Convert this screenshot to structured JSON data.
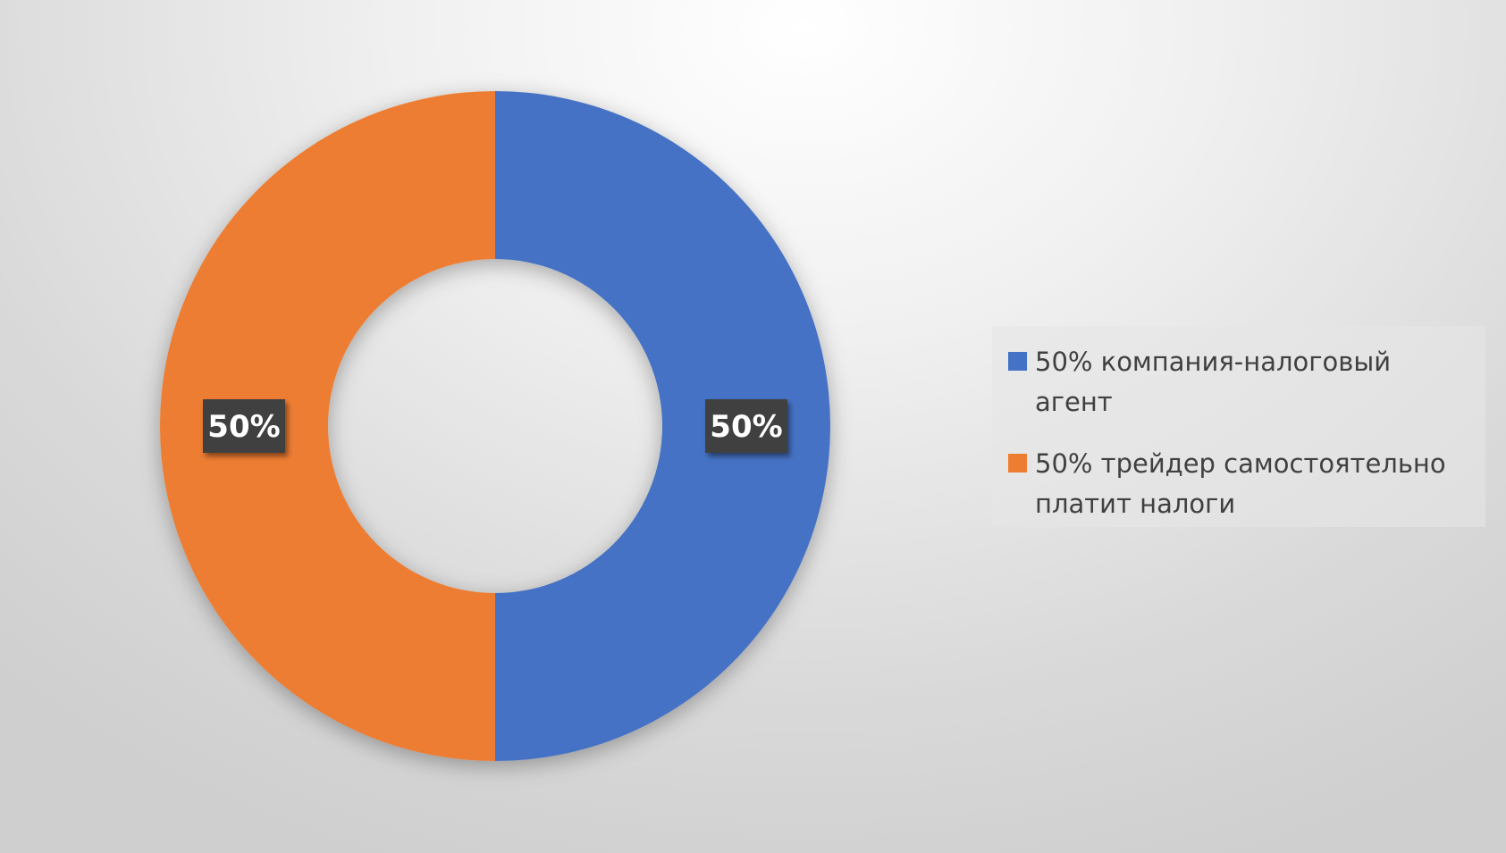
{
  "chart_data": {
    "type": "donut",
    "categories": [
      "50% компания-налоговый агент",
      "50% трейдер самостоятельно платит налоги"
    ],
    "values": [
      50,
      50
    ],
    "value_labels": [
      "50%",
      "50%"
    ],
    "colors": [
      "#4472c4",
      "#ed7d31"
    ],
    "legend": "right"
  }
}
